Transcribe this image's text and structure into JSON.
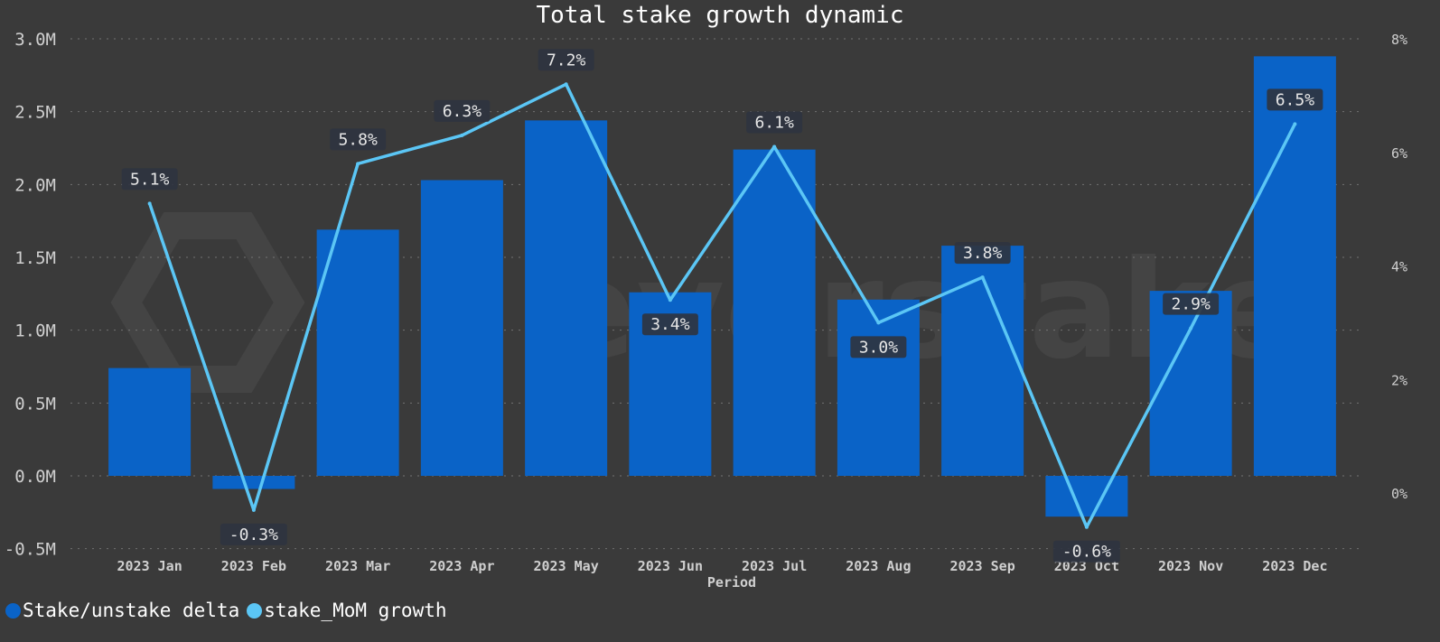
{
  "chart_data": {
    "type": "bar",
    "title": "Total stake growth dynamic",
    "xlabel": "Period",
    "categories": [
      "2023 Jan",
      "2023 Feb",
      "2023 Mar",
      "2023 Apr",
      "2023 May",
      "2023 Jun",
      "2023 Jul",
      "2023 Aug",
      "2023 Sep",
      "2023 Oct",
      "2023 Nov",
      "2023 Dec"
    ],
    "series": [
      {
        "name": "Stake/unstake delta",
        "type": "bar",
        "axis": "left",
        "color": "#0a63c7",
        "values": [
          740000,
          -90000,
          1690000,
          2030000,
          2440000,
          1260000,
          2240000,
          1210000,
          1580000,
          -280000,
          1270000,
          2880000
        ]
      },
      {
        "name": "stake_MoM growth",
        "type": "line",
        "axis": "right",
        "color": "#5bc6f5",
        "values": [
          5.1,
          -0.3,
          5.8,
          6.3,
          7.2,
          3.4,
          6.1,
          3.0,
          3.8,
          -0.6,
          2.9,
          6.5
        ],
        "labels": [
          "5.1%",
          "-0.3%",
          "5.8%",
          "6.3%",
          "7.2%",
          "3.4%",
          "6.1%",
          "3.0%",
          "3.8%",
          "-0.6%",
          "2.9%",
          "6.5%"
        ]
      }
    ],
    "y_left": {
      "ylim": [
        -500000,
        3000000
      ],
      "ticks": [
        -500000,
        0,
        500000,
        1000000,
        1500000,
        2000000,
        2500000,
        3000000
      ],
      "tick_labels": [
        "-0.5M",
        "0.0M",
        "0.5M",
        "1.0M",
        "1.5M",
        "2.0M",
        "2.5M",
        "3.0M"
      ]
    },
    "y_right": {
      "ticks": [
        0,
        2,
        4,
        6,
        8
      ],
      "tick_labels": [
        "0%",
        "2%",
        "4%",
        "6%",
        "8%"
      ]
    },
    "grid": true,
    "legend_position": "bottom-left",
    "watermark": "everstake"
  }
}
